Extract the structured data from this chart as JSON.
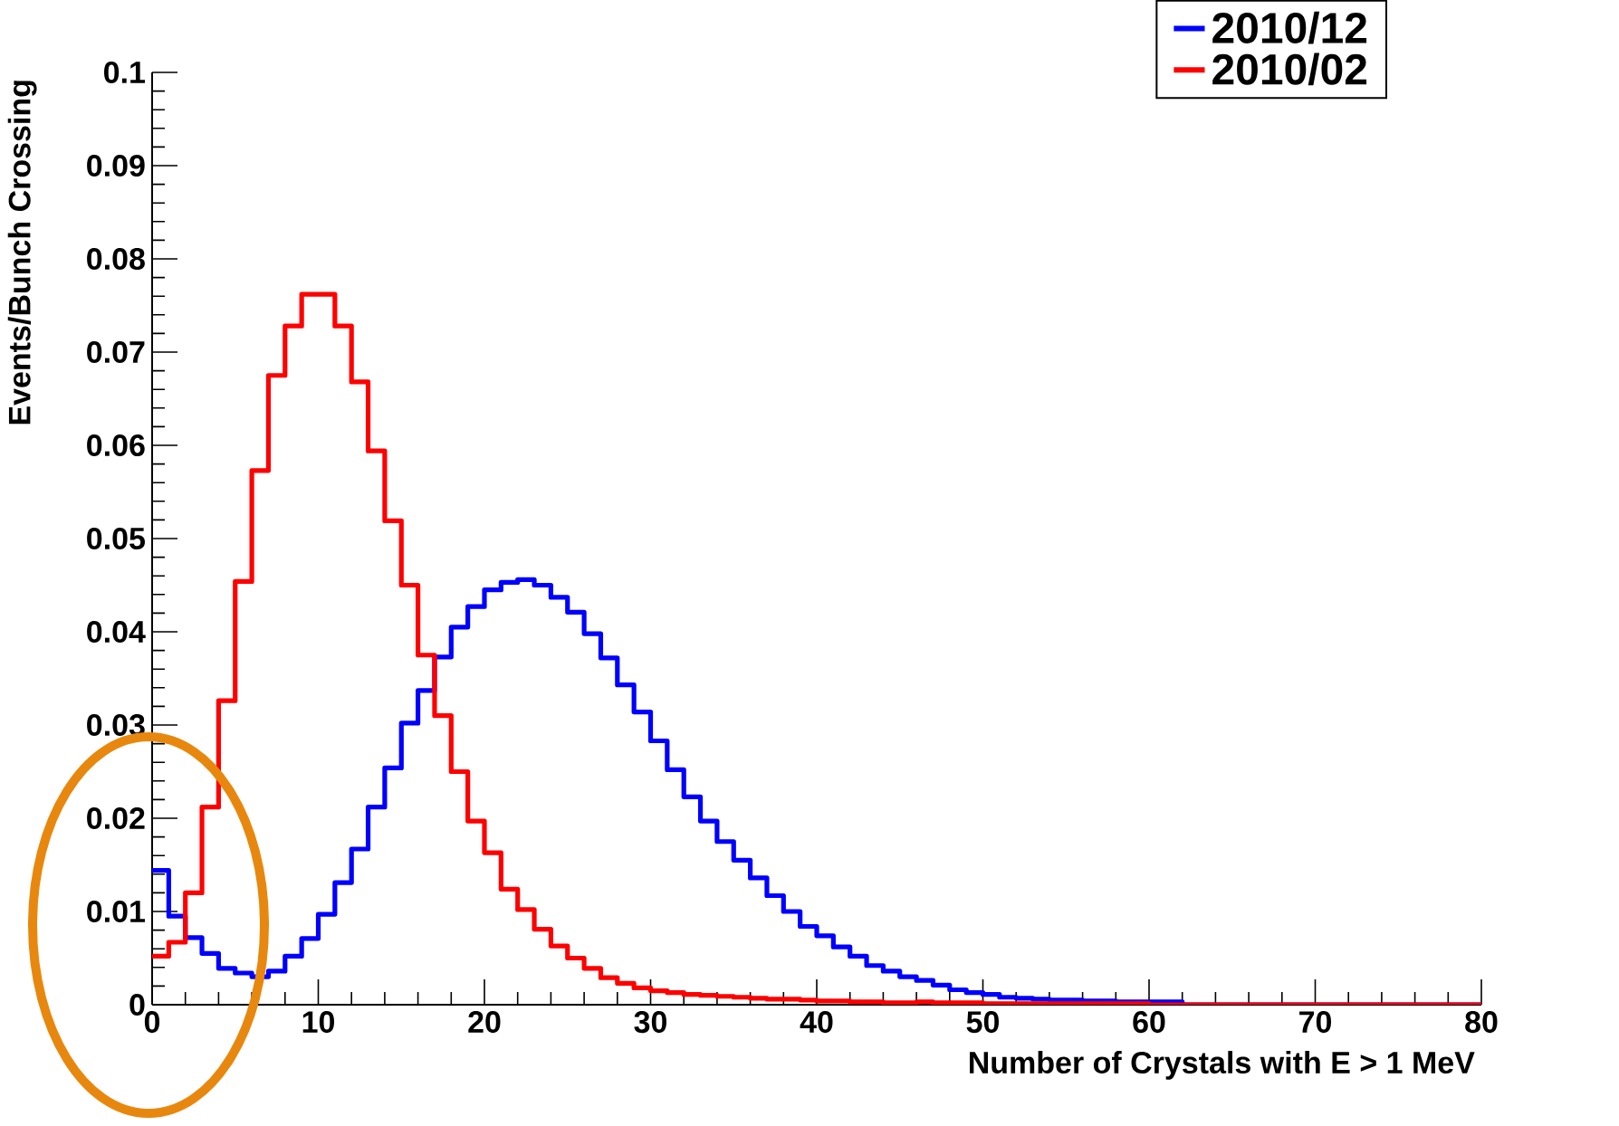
{
  "chart_data": {
    "type": "histogram",
    "xlabel": "Number of Crystals with E > 1 MeV",
    "ylabel": "Events/Bunch Crossing",
    "bins": [
      0,
      1,
      2,
      3,
      4,
      5,
      6,
      7,
      8,
      9,
      10,
      11,
      12,
      13,
      14,
      15,
      16,
      17,
      18,
      19,
      20,
      21,
      22,
      23,
      24,
      25,
      26,
      27,
      28,
      29,
      30,
      31,
      32,
      33,
      34,
      35,
      36,
      37,
      38,
      39,
      40,
      41,
      42,
      43,
      44,
      45,
      46,
      47,
      48,
      49,
      50,
      51,
      52,
      53,
      54,
      55,
      56,
      57,
      58,
      59,
      60,
      61,
      62,
      63,
      64,
      65,
      66,
      67,
      68,
      69,
      70,
      71,
      72,
      73,
      74,
      75,
      76,
      77,
      78,
      79,
      80
    ],
    "series": [
      {
        "name": "2010/12",
        "color": "#0000ff",
        "values": [
          0.0144,
          0.0095,
          0.0072,
          0.0055,
          0.0039,
          0.0034,
          0.003,
          0.0036,
          0.0052,
          0.0071,
          0.0097,
          0.0131,
          0.0167,
          0.0212,
          0.0254,
          0.0302,
          0.0337,
          0.0373,
          0.0405,
          0.0427,
          0.0445,
          0.0453,
          0.0456,
          0.045,
          0.0437,
          0.0421,
          0.0398,
          0.0372,
          0.0343,
          0.0314,
          0.0283,
          0.0252,
          0.0223,
          0.0197,
          0.0175,
          0.0155,
          0.0136,
          0.0117,
          0.01,
          0.0084,
          0.0074,
          0.0062,
          0.0052,
          0.0042,
          0.0036,
          0.003,
          0.0026,
          0.0021,
          0.0016,
          0.0013,
          0.0011,
          0.0008,
          0.0007,
          0.0006,
          0.0005,
          0.0005,
          0.0004,
          0.0004,
          0.0003,
          0.0003,
          0.0003,
          0.0003,
          0,
          0,
          0,
          0,
          0,
          0,
          0,
          0,
          0,
          0,
          0,
          0,
          0,
          0,
          0,
          0,
          0,
          0
        ]
      },
      {
        "name": "2010/02",
        "color": "#ff0000",
        "values": [
          0.0052,
          0.0067,
          0.012,
          0.0212,
          0.0326,
          0.0454,
          0.0573,
          0.0675,
          0.0728,
          0.0762,
          0.0762,
          0.0728,
          0.0668,
          0.0594,
          0.0519,
          0.045,
          0.0375,
          0.031,
          0.025,
          0.0197,
          0.0163,
          0.0124,
          0.0102,
          0.0081,
          0.0063,
          0.005,
          0.0039,
          0.0029,
          0.0023,
          0.0018,
          0.0015,
          0.0013,
          0.0011,
          0.001,
          0.0009,
          0.0008,
          0.0007,
          0.0006,
          0.0006,
          0.0005,
          0.0004,
          0.0004,
          0.0003,
          0.0003,
          0.0002,
          0.0002,
          0.0003,
          0.0002,
          0.0002,
          0.0002,
          0.0001,
          0.0001,
          0.0001,
          0.0001,
          0.0001,
          0.0001,
          0.0001,
          0.0001,
          0.0001,
          0.0001,
          0,
          0,
          0,
          0,
          0,
          0,
          0,
          0,
          0,
          0,
          0,
          0,
          0,
          0,
          0,
          0,
          0,
          0,
          0,
          0
        ]
      }
    ],
    "xlim": [
      0,
      80
    ],
    "ylim": [
      0,
      0.1
    ],
    "xticks": [
      0,
      10,
      20,
      30,
      40,
      50,
      60,
      70,
      80
    ],
    "yticks": [
      0,
      0.01,
      0.02,
      0.03,
      0.04,
      0.05,
      0.06,
      0.07,
      0.08,
      0.09,
      0.1
    ],
    "grid": false,
    "legend": "top right"
  }
}
